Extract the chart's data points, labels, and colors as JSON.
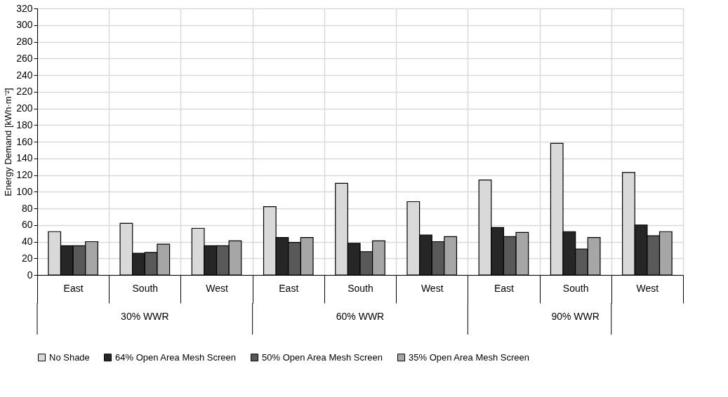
{
  "chart_data": {
    "type": "bar",
    "ylabel": "Energy Demand [kWh·m⁻²]",
    "categories": [
      "East",
      "South",
      "West",
      "East",
      "South",
      "West",
      "East",
      "South",
      "West"
    ],
    "series": [
      {
        "name": "No Shade",
        "color": "#d9d9d9",
        "values": [
          52,
          62,
          56,
          82,
          110,
          88,
          114,
          158,
          123
        ]
      },
      {
        "name": "64% Open Area Mesh Screen",
        "color": "#262626",
        "values": [
          35,
          26,
          35,
          45,
          38,
          48,
          57,
          52,
          60
        ]
      },
      {
        "name": "50% Open Area Mesh Screen",
        "color": "#595959",
        "values": [
          35,
          27,
          35,
          39,
          28,
          40,
          46,
          31,
          47
        ]
      },
      {
        "name": "35% Open Area Mesh Screen",
        "color": "#a6a6a6",
        "values": [
          40,
          37,
          41,
          45,
          41,
          46,
          51,
          45,
          52
        ]
      }
    ],
    "annotations": [
      "30% WWR",
      "60% WWR",
      "90% WWR"
    ],
    "ylim": [
      0,
      320
    ],
    "yticks": [
      0,
      20,
      40,
      60,
      80,
      100,
      120,
      140,
      160,
      180,
      200,
      220,
      240,
      260,
      280,
      300,
      320
    ],
    "grid": true,
    "legend": "bottom"
  }
}
